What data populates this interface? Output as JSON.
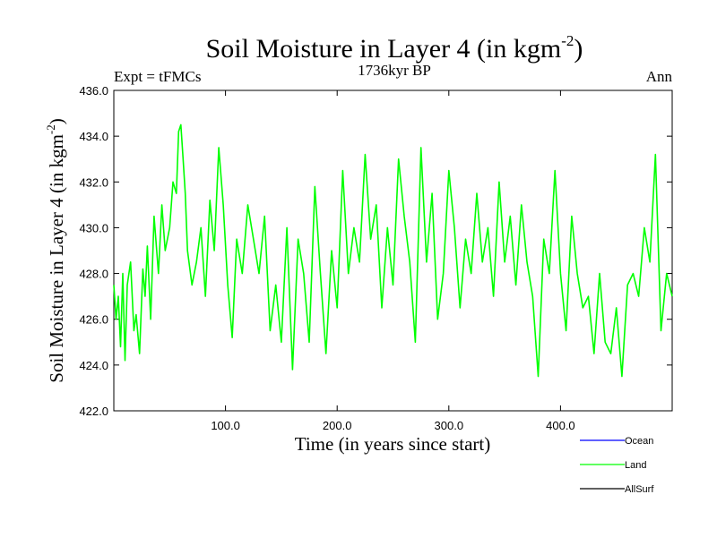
{
  "chart_data": {
    "type": "line",
    "title": "Soil Moisture in Layer 4 (in kgm",
    "title_superscript": "-2",
    "title_close": ")",
    "subtitle_left": "Expt = tFMCs",
    "subtitle_center": "1736kyr BP",
    "subtitle_right": "Ann",
    "xlabel": "Time (in years since start)",
    "ylabel": "Soil Moisture in Layer 4 (in kgm",
    "ylabel_superscript": "-2",
    "ylabel_close": ")",
    "xlim": [
      0,
      500
    ],
    "ylim": [
      422,
      436
    ],
    "xticks": [
      100,
      200,
      300,
      400
    ],
    "xtick_labels": [
      "100.0",
      "200.0",
      "300.0",
      "400.0"
    ],
    "yticks": [
      422,
      424,
      426,
      428,
      430,
      432,
      434,
      436
    ],
    "ytick_labels": [
      "422.0",
      "424.0",
      "426.0",
      "428.0",
      "430.0",
      "432.0",
      "434.0",
      "436.0"
    ],
    "series": [
      {
        "name": "Land",
        "color": "#00ff00",
        "x": [
          0,
          2,
          4,
          6,
          8,
          10,
          12,
          15,
          18,
          20,
          23,
          26,
          28,
          30,
          33,
          36,
          40,
          43,
          46,
          50,
          53,
          56,
          58,
          60,
          62,
          64,
          66,
          70,
          74,
          78,
          82,
          86,
          90,
          94,
          98,
          102,
          106,
          110,
          115,
          120,
          125,
          130,
          135,
          140,
          145,
          150,
          155,
          160,
          165,
          170,
          175,
          180,
          185,
          190,
          195,
          200,
          205,
          210,
          215,
          220,
          225,
          230,
          235,
          240,
          245,
          250,
          255,
          260,
          265,
          270,
          275,
          280,
          285,
          290,
          295,
          300,
          305,
          310,
          315,
          320,
          325,
          330,
          335,
          340,
          345,
          350,
          355,
          360,
          365,
          370,
          375,
          380,
          385,
          390,
          395,
          400,
          405,
          410,
          415,
          420,
          425,
          430,
          435,
          440,
          445,
          450,
          455,
          460,
          465,
          470,
          475,
          480,
          485,
          490,
          495,
          500
        ],
        "values": [
          427.5,
          426.0,
          427.0,
          424.8,
          428.0,
          424.2,
          427.5,
          428.5,
          425.5,
          426.2,
          424.5,
          428.2,
          427.0,
          429.2,
          426.0,
          430.5,
          428.0,
          431.0,
          429.0,
          430.0,
          432.0,
          431.5,
          434.2,
          434.5,
          433.0,
          431.5,
          429.0,
          427.5,
          428.5,
          430.0,
          427.0,
          431.2,
          429.0,
          433.5,
          431.0,
          427.5,
          425.2,
          429.5,
          428.0,
          431.0,
          429.5,
          428.0,
          430.5,
          425.5,
          427.5,
          425.0,
          430.0,
          423.8,
          429.5,
          428.0,
          425.0,
          431.8,
          428.0,
          424.5,
          429.0,
          426.5,
          432.5,
          428.0,
          430.0,
          428.5,
          433.2,
          429.5,
          431.0,
          426.5,
          430.0,
          427.5,
          433.0,
          430.5,
          428.5,
          425.0,
          433.5,
          428.5,
          431.5,
          426.0,
          428.0,
          432.5,
          430.0,
          426.5,
          429.5,
          428.0,
          431.5,
          428.5,
          430.0,
          427.0,
          432.0,
          428.5,
          430.5,
          427.5,
          431.0,
          428.5,
          427.0,
          423.5,
          429.5,
          428.0,
          432.5,
          428.0,
          425.5,
          430.5,
          428.0,
          426.5,
          427.0,
          424.5,
          428.0,
          425.0,
          424.5,
          426.5,
          423.5,
          427.5,
          428.0,
          427.0,
          430.0,
          428.5,
          433.2,
          425.5,
          428.0,
          427.0
        ]
      }
    ],
    "legend": [
      {
        "name": "Ocean",
        "color": "#0000ff"
      },
      {
        "name": "Land",
        "color": "#00ff00"
      },
      {
        "name": "AllSurf",
        "color": "#000000"
      }
    ],
    "legend_position": "bottom-right"
  }
}
